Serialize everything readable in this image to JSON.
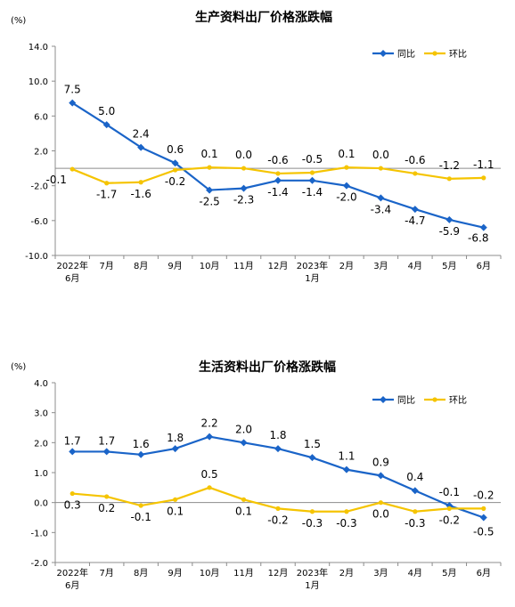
{
  "chart_data": [
    {
      "type": "line",
      "title": "生产资料出厂价格涨跌幅",
      "unit_label": "(%)",
      "categories": [
        [
          "2022年",
          "6月"
        ],
        [
          "7月"
        ],
        [
          "8月"
        ],
        [
          "9月"
        ],
        [
          "10月"
        ],
        [
          "11月"
        ],
        [
          "12月"
        ],
        [
          "2023年",
          "1月"
        ],
        [
          "2月"
        ],
        [
          "3月"
        ],
        [
          "4月"
        ],
        [
          "5月"
        ],
        [
          "6月"
        ]
      ],
      "ylim": [
        -10,
        14
      ],
      "yticks": [
        -10,
        -6,
        -2,
        2,
        6,
        10,
        14
      ],
      "ytick_labels": [
        "-10.0",
        "-6.0",
        "-2.0",
        "2.0",
        "6.0",
        "10.0",
        "14.0"
      ],
      "legend_position": "top-right",
      "series": [
        {
          "name": "同比",
          "color": "#1a64c8",
          "marker": "diamond",
          "values": [
            7.5,
            5.0,
            2.4,
            0.6,
            -2.5,
            -2.3,
            -1.4,
            -1.4,
            -2.0,
            -3.4,
            -4.7,
            -5.9,
            -6.8
          ],
          "labels": [
            "7.5",
            "5.0",
            "2.4",
            "0.6",
            "-2.5",
            "-2.3",
            "-1.4",
            "-1.4",
            "-2.0",
            "-3.4",
            "-4.7",
            "-5.9",
            "-6.8"
          ]
        },
        {
          "name": "环比",
          "color": "#f5c400",
          "marker": "circle",
          "values": [
            -0.1,
            -1.7,
            -1.6,
            -0.2,
            0.1,
            0.0,
            -0.6,
            -0.5,
            0.1,
            0.0,
            -0.6,
            -1.2,
            -1.1
          ],
          "labels": [
            "-0.1",
            "-1.7",
            "-1.6",
            "-0.2",
            "0.1",
            "0.0",
            "-0.6",
            "-0.5",
            "0.1",
            "0.0",
            "-0.6",
            "-1.2",
            "-1.1"
          ]
        }
      ]
    },
    {
      "type": "line",
      "title": "生活资料出厂价格涨跌幅",
      "unit_label": "(%)",
      "categories": [
        [
          "2022年",
          "6月"
        ],
        [
          "7月"
        ],
        [
          "8月"
        ],
        [
          "9月"
        ],
        [
          "10月"
        ],
        [
          "11月"
        ],
        [
          "12月"
        ],
        [
          "2023年",
          "1月"
        ],
        [
          "2月"
        ],
        [
          "3月"
        ],
        [
          "4月"
        ],
        [
          "5月"
        ],
        [
          "6月"
        ]
      ],
      "ylim": [
        -2,
        4
      ],
      "yticks": [
        -2,
        -1,
        0,
        1,
        2,
        3,
        4
      ],
      "ytick_labels": [
        "-2.0",
        "-1.0",
        "0.0",
        "1.0",
        "2.0",
        "3.0",
        "4.0"
      ],
      "legend_position": "top-right",
      "series": [
        {
          "name": "同比",
          "color": "#1a64c8",
          "marker": "diamond",
          "values": [
            1.7,
            1.7,
            1.6,
            1.8,
            2.2,
            2.0,
            1.8,
            1.5,
            1.1,
            0.9,
            0.4,
            -0.1,
            -0.5
          ],
          "labels": [
            "1.7",
            "1.7",
            "1.6",
            "1.8",
            "2.2",
            "2.0",
            "1.8",
            "1.5",
            "1.1",
            "0.9",
            "0.4",
            "-0.1",
            "-0.5"
          ]
        },
        {
          "name": "环比",
          "color": "#f5c400",
          "marker": "circle",
          "values": [
            0.3,
            0.2,
            -0.1,
            0.1,
            0.5,
            0.1,
            -0.2,
            -0.3,
            -0.3,
            0.0,
            -0.3,
            -0.2,
            -0.2
          ],
          "labels": [
            "0.3",
            "0.2",
            "-0.1",
            "0.1",
            "0.5",
            "0.1",
            "-0.2",
            "-0.3",
            "-0.3",
            "0.0",
            "-0.3",
            "-0.2",
            "-0.2"
          ]
        }
      ]
    }
  ]
}
